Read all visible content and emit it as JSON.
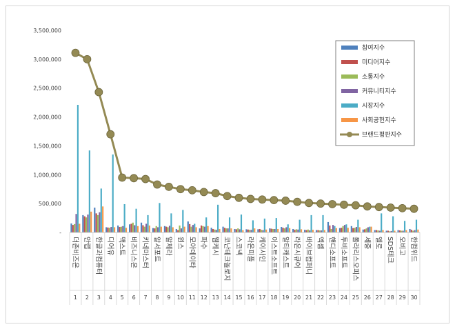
{
  "chart_data": {
    "type": "bar",
    "title": "",
    "xlabel": "",
    "ylabel": "",
    "ylim": [
      0,
      3500000
    ],
    "yticks": [
      0,
      500000,
      1000000,
      1500000,
      2000000,
      2500000,
      3000000,
      3500000
    ],
    "ytick_labels": [
      "-",
      "500,000",
      "1,000,000",
      "1,500,000",
      "2,000,000",
      "2,500,000",
      "3,000,000",
      "3,500,000"
    ],
    "legend_position": "top-right",
    "categories": [
      "더존비즈온",
      "안랩",
      "한글과컴퓨터",
      "디어유",
      "맥스트",
      "비즈니스온",
      "키네마스터",
      "알서포트",
      "알체라",
      "윈스",
      "모아데이타",
      "파수",
      "웹케시",
      "코난테크놀로지",
      "스코넥",
      "라온피플",
      "케이사인",
      "이스트소프트",
      "알티캐스트",
      "라온시큐어",
      "바이브컴퍼니",
      "엑셈",
      "핸디소프트",
      "투비소프트",
      "폴라리스오피스",
      "세중",
      "엘로",
      "SDS테크",
      "오비고",
      "한컴위드"
    ],
    "ranks": [
      "1",
      "2",
      "3",
      "4",
      "5",
      "6",
      "7",
      "8",
      "9",
      "10",
      "11",
      "12",
      "13",
      "14",
      "15",
      "16",
      "17",
      "18",
      "19",
      "20",
      "21",
      "22",
      "23",
      "24",
      "25",
      "26",
      "27",
      "28",
      "29",
      "30"
    ],
    "series": [
      {
        "name": "참여지수",
        "color": "#4f81bd",
        "kind": "bar",
        "values": [
          155000,
          300000,
          430000,
          90000,
          120000,
          140000,
          170000,
          75000,
          110000,
          60000,
          190000,
          70000,
          80000,
          100000,
          60000,
          55000,
          55000,
          70000,
          95000,
          60000,
          45000,
          40000,
          180000,
          75000,
          110000,
          50000,
          40000,
          30000,
          40000,
          60000
        ]
      },
      {
        "name": "미디어지수",
        "color": "#c0504d",
        "kind": "bar",
        "values": [
          130000,
          280000,
          330000,
          85000,
          95000,
          150000,
          125000,
          70000,
          100000,
          40000,
          145000,
          120000,
          60000,
          80000,
          55000,
          50000,
          60000,
          65000,
          80000,
          45000,
          40000,
          40000,
          120000,
          80000,
          75000,
          55000,
          40000,
          30000,
          35000,
          45000
        ]
      },
      {
        "name": "소통지수",
        "color": "#9bbb59",
        "kind": "bar",
        "values": [
          145000,
          260000,
          300000,
          80000,
          100000,
          170000,
          100000,
          110000,
          90000,
          120000,
          100000,
          110000,
          50000,
          70000,
          70000,
          45000,
          45000,
          60000,
          70000,
          55000,
          50000,
          35000,
          60000,
          110000,
          80000,
          70000,
          35000,
          20000,
          30000,
          30000
        ]
      },
      {
        "name": "커뮤니티지수",
        "color": "#8064a2",
        "kind": "bar",
        "values": [
          320000,
          310000,
          350000,
          95000,
          110000,
          125000,
          150000,
          90000,
          115000,
          70000,
          130000,
          100000,
          45000,
          70000,
          55000,
          45000,
          40000,
          60000,
          90000,
          50000,
          35000,
          35000,
          130000,
          130000,
          95000,
          90000,
          30000,
          25000,
          30000,
          40000
        ]
      },
      {
        "name": "시장지수",
        "color": "#4bacc6",
        "kind": "bar",
        "values": [
          2210000,
          1420000,
          760000,
          1350000,
          490000,
          410000,
          300000,
          510000,
          330000,
          390000,
          150000,
          260000,
          480000,
          260000,
          310000,
          210000,
          240000,
          250000,
          140000,
          220000,
          300000,
          300000,
          110000,
          140000,
          220000,
          100000,
          330000,
          280000,
          200000,
          220000
        ]
      },
      {
        "name": "사회공헌지수",
        "color": "#f79646",
        "kind": "bar",
        "values": [
          150000,
          360000,
          450000,
          90000,
          80000,
          110000,
          120000,
          100000,
          90000,
          100000,
          90000,
          110000,
          60000,
          70000,
          40000,
          70000,
          50000,
          60000,
          75000,
          55000,
          45000,
          40000,
          75000,
          80000,
          90000,
          100000,
          40000,
          30000,
          40000,
          50000
        ]
      },
      {
        "name": "브랜드평판지수",
        "color": "#948a54",
        "kind": "line",
        "values": [
          3110000,
          3000000,
          2430000,
          1700000,
          950000,
          940000,
          925000,
          830000,
          790000,
          750000,
          730000,
          700000,
          680000,
          630000,
          600000,
          580000,
          570000,
          560000,
          550000,
          530000,
          510000,
          500000,
          490000,
          480000,
          470000,
          450000,
          440000,
          430000,
          420000,
          410000
        ]
      }
    ]
  }
}
